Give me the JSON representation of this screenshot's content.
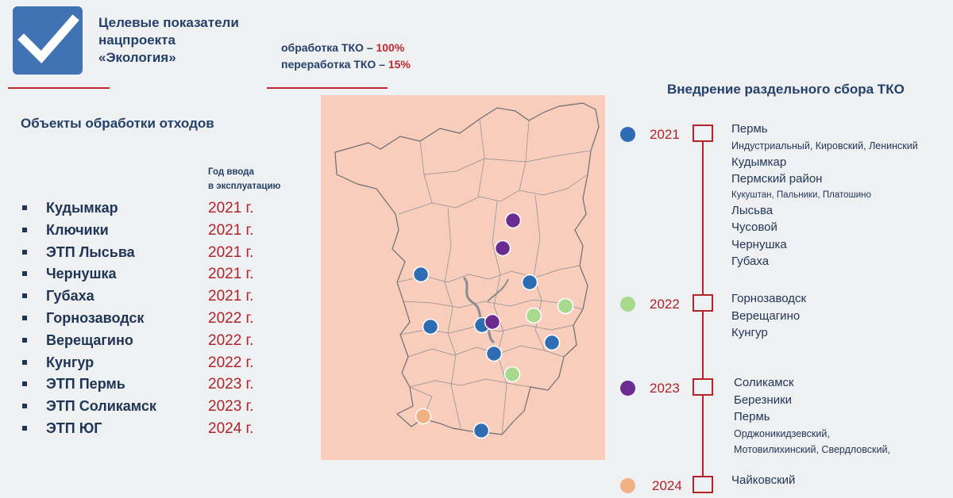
{
  "header": {
    "title_lines": [
      "Целевые показатели",
      "нацпроекта",
      "«Экология»"
    ],
    "targets": [
      {
        "label": "обработка ТКО – ",
        "value": "100%"
      },
      {
        "label": "переработка ТКО – ",
        "value": "15%"
      }
    ]
  },
  "objects": {
    "title": "Объекты обработки отходов",
    "year_header_lines": [
      "Год ввода",
      "в эксплуатацию"
    ],
    "items": [
      {
        "name": "Кудымкар",
        "year": "2021 г."
      },
      {
        "name": "Ключики",
        "year": "2021 г."
      },
      {
        "name": "ЭТП Лысьва",
        "year": "2021 г."
      },
      {
        "name": "Чернушка",
        "year": "2021 г."
      },
      {
        "name": "Губаха",
        "year": "2021 г."
      },
      {
        "name": "Горнозаводск",
        "year": "2022 г."
      },
      {
        "name": "Верещагино",
        "year": "2022 г."
      },
      {
        "name": "Кунгур",
        "year": "2022 г."
      },
      {
        "name": "ЭТП Пермь",
        "year": "2023 г."
      },
      {
        "name": "ЭТП Соликамск",
        "year": "2023 г."
      },
      {
        "name": "ЭТП ЮГ",
        "year": "2024 г."
      }
    ]
  },
  "colors": {
    "y2021": "#2e6db4",
    "y2022": "#a8d98f",
    "y2023": "#6a2c91",
    "y2024": "#f2b183",
    "accent_red": "#b0232a",
    "map_fill": "#f8cdbc"
  },
  "map_markers": [
    {
      "year": "2023",
      "color_key": "y2023"
    },
    {
      "year": "2023",
      "color_key": "y2023"
    },
    {
      "year": "2021",
      "color_key": "y2021"
    },
    {
      "year": "2021",
      "color_key": "y2021"
    },
    {
      "year": "2022",
      "color_key": "y2022"
    },
    {
      "year": "2021",
      "color_key": "y2021"
    },
    {
      "year": "2022",
      "color_key": "y2022"
    },
    {
      "year": "2021",
      "color_key": "y2021"
    },
    {
      "year": "2023",
      "color_key": "y2023"
    },
    {
      "year": "2021",
      "color_key": "y2021"
    },
    {
      "year": "2021",
      "color_key": "y2021"
    },
    {
      "year": "2022",
      "color_key": "y2022"
    },
    {
      "year": "2024",
      "color_key": "y2024"
    },
    {
      "year": "2021",
      "color_key": "y2021"
    }
  ],
  "timeline": {
    "title": "Внедрение раздельного сбора ТКО",
    "groups": [
      {
        "year": "2021",
        "color_key": "y2021",
        "entries": [
          {
            "text": "Пермь",
            "kind": "main"
          },
          {
            "text": "Индустриальный, Кировский, Ленинский",
            "kind": "sub"
          },
          {
            "text": "Кудымкар",
            "kind": "main"
          },
          {
            "text": "Пермский район",
            "kind": "main"
          },
          {
            "text": "Кукуштан, Пальники, Платошино",
            "kind": "sub-sm"
          },
          {
            "text": "Лысьва",
            "kind": "main"
          },
          {
            "text": "Чусовой",
            "kind": "main"
          },
          {
            "text": "Чернушка",
            "kind": "main"
          },
          {
            "text": "Губаха",
            "kind": "main"
          }
        ]
      },
      {
        "year": "2022",
        "color_key": "y2022",
        "entries": [
          {
            "text": "Горнозаводск",
            "kind": "main"
          },
          {
            "text": "Верещагино",
            "kind": "main"
          },
          {
            "text": "Кунгур",
            "kind": "main"
          }
        ]
      },
      {
        "year": "2023",
        "color_key": "y2023",
        "entries": [
          {
            "text": "Соликамск",
            "kind": "main"
          },
          {
            "text": "Березники",
            "kind": "main"
          },
          {
            "text": "Пермь",
            "kind": "main"
          },
          {
            "text": "Орджоникидзевский,",
            "kind": "sub"
          },
          {
            "text": "Мотовилихинский, Свердловский,",
            "kind": "sub"
          }
        ]
      },
      {
        "year": "2024",
        "color_key": "y2024",
        "entries": [
          {
            "text": "Чайковский",
            "kind": "main"
          }
        ]
      }
    ]
  }
}
